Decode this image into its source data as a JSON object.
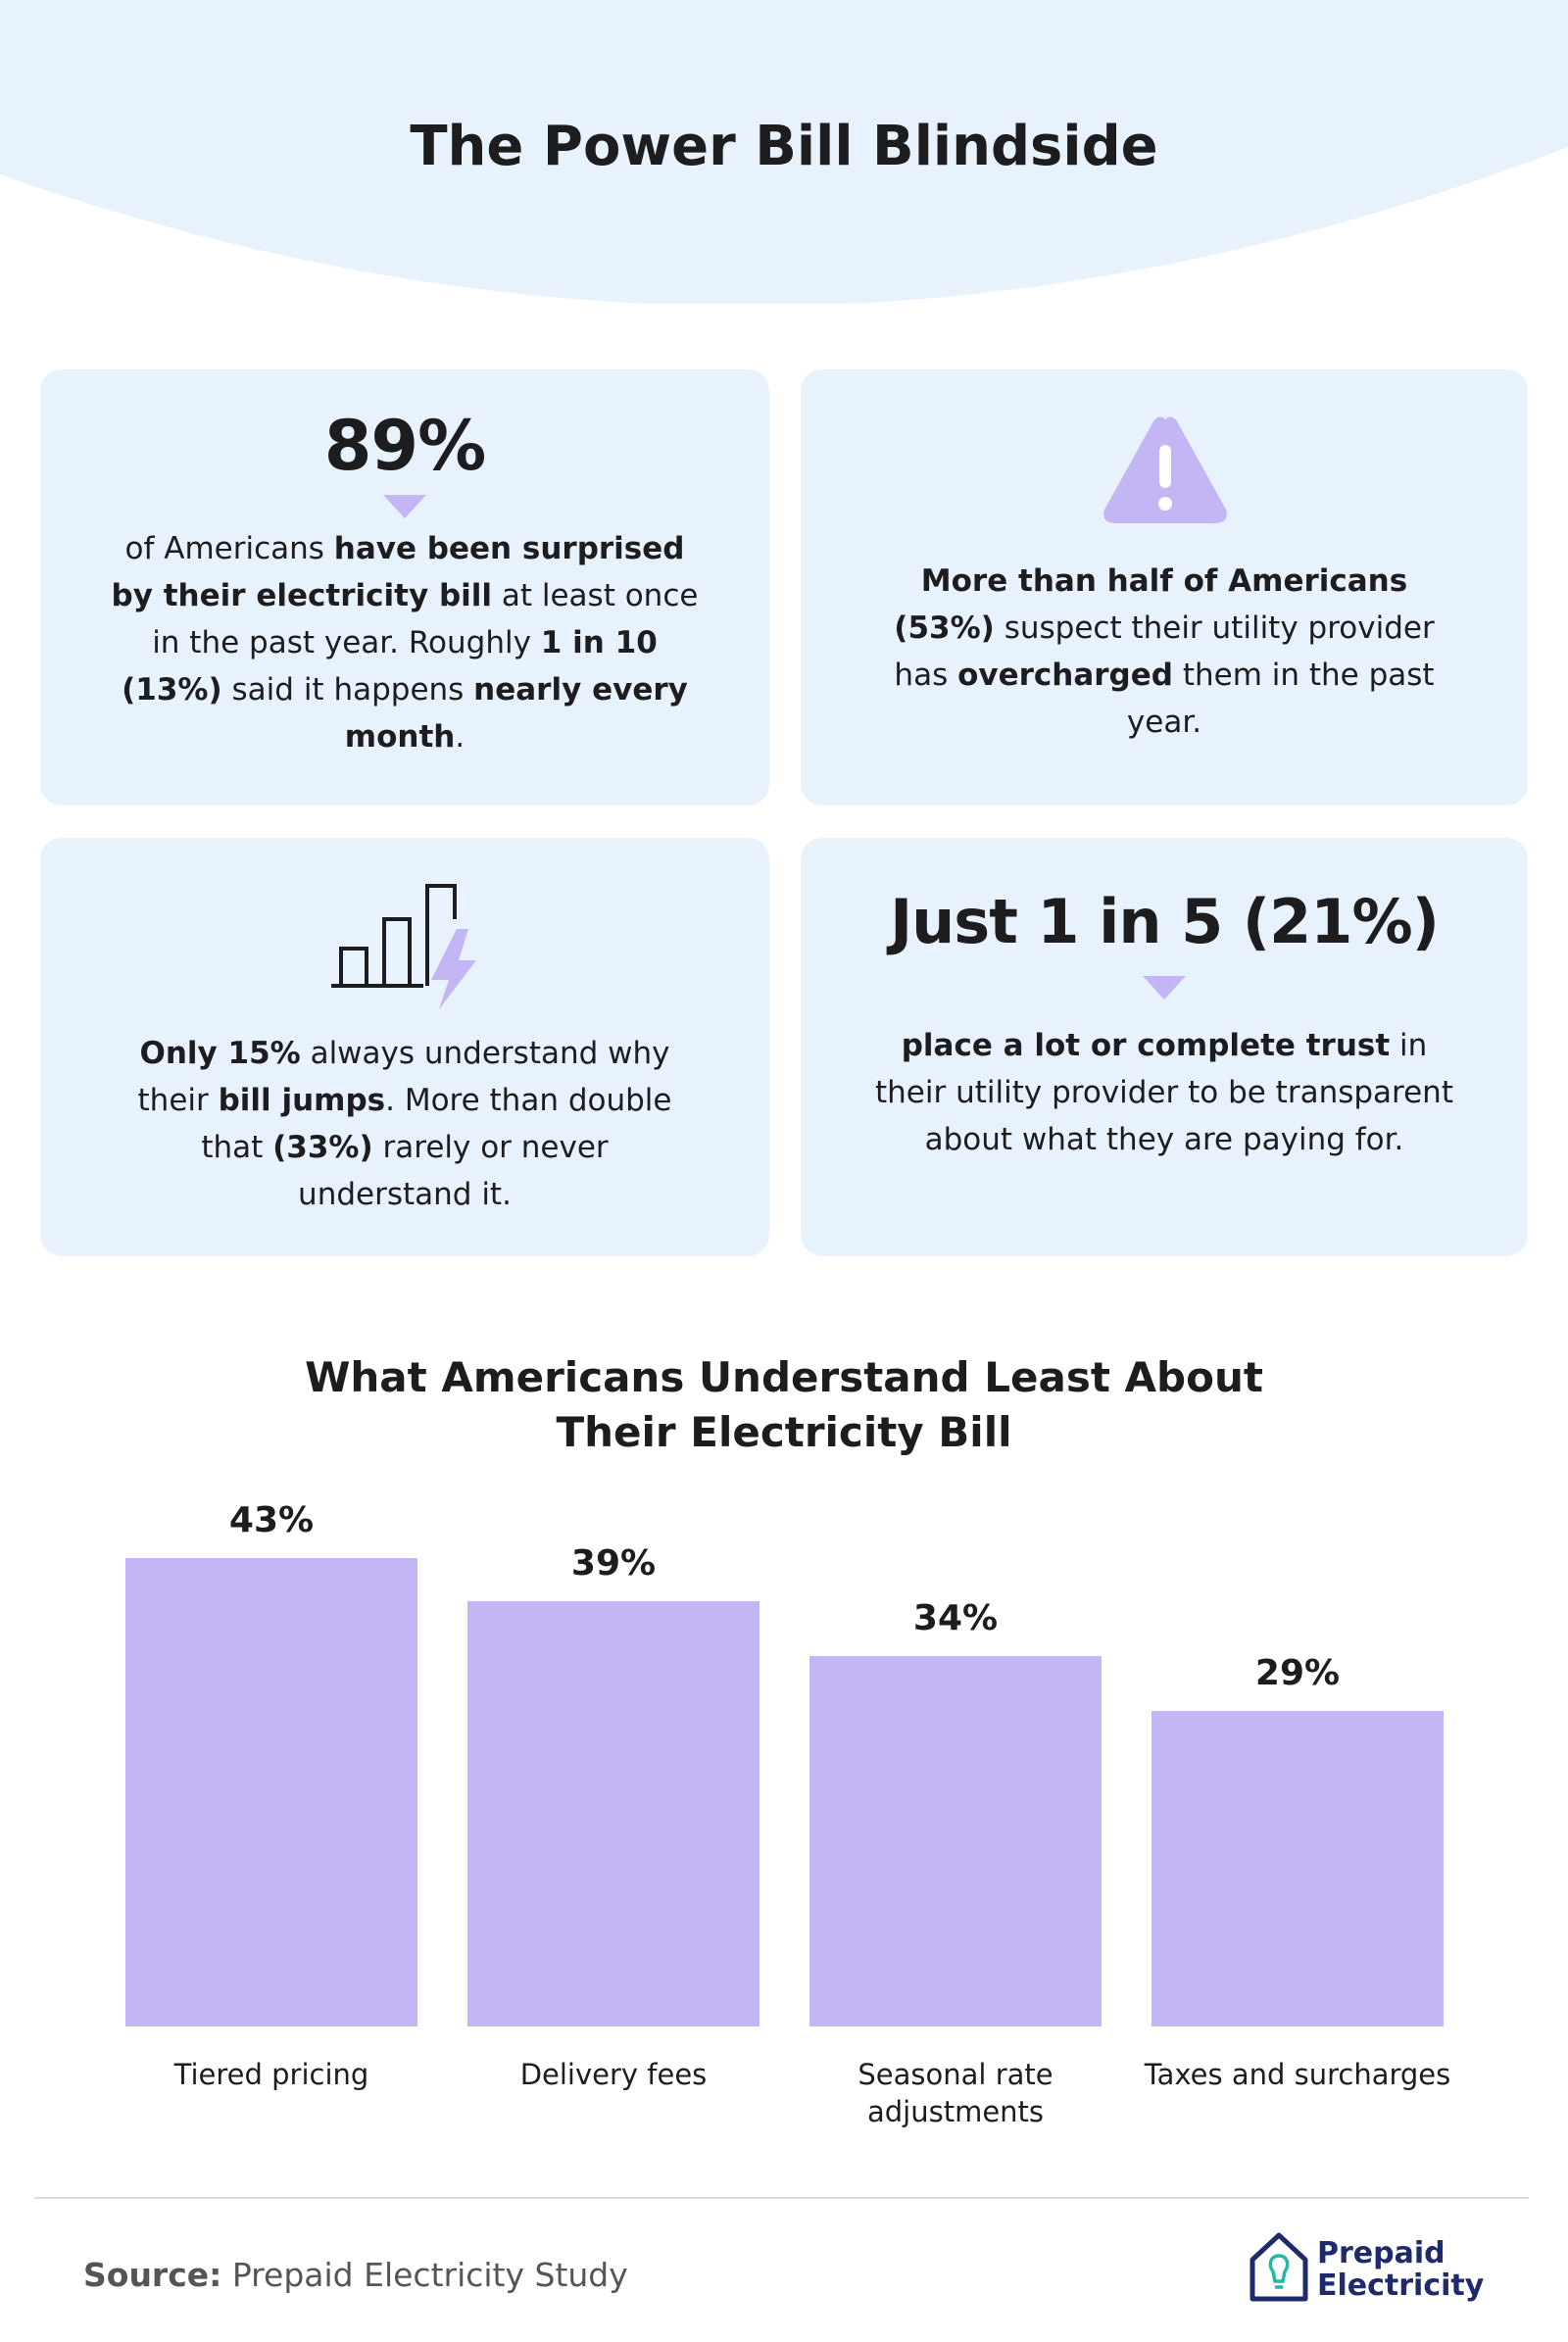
{
  "header": {
    "title": "The Power Bill Blindside"
  },
  "cards": [
    {
      "headline": "89%",
      "body": [
        {
          "text": "of Americans ",
          "bold": false
        },
        {
          "text": "have been surprised by their electricity bill",
          "bold": true
        },
        {
          "text": " at least once in the past year. Roughly ",
          "bold": false
        },
        {
          "text": "1 in 10 (13%)",
          "bold": true
        },
        {
          "text": " said it happens ",
          "bold": false
        },
        {
          "text": "nearly every month",
          "bold": true
        },
        {
          "text": ".",
          "bold": false
        }
      ]
    },
    {
      "body": [
        {
          "text": "More than half of Americans (53%)",
          "bold": true
        },
        {
          "text": " suspect their utility provider has ",
          "bold": false
        },
        {
          "text": "overcharged",
          "bold": true
        },
        {
          "text": " them in the past year.",
          "bold": false
        }
      ]
    },
    {
      "body": [
        {
          "text": "Only 15%",
          "bold": true
        },
        {
          "text": " always understand why their ",
          "bold": false
        },
        {
          "text": "bill jumps",
          "bold": true
        },
        {
          "text": ". More than double that ",
          "bold": false
        },
        {
          "text": "(33%)",
          "bold": true
        },
        {
          "text": " rarely or never understand it.",
          "bold": false
        }
      ]
    },
    {
      "headline": "Just 1 in 5 (21%)",
      "body": [
        {
          "text": "place a lot or complete trust",
          "bold": true
        },
        {
          "text": " in their utility provider to be transparent about what they are paying for.",
          "bold": false
        }
      ]
    }
  ],
  "chart_data": {
    "type": "bar",
    "title": "What Americans Understand Least About Their Electricity Bill",
    "categories": [
      "Tiered pricing",
      "Delivery fees",
      "Seasonal rate adjustments",
      "Taxes and surcharges"
    ],
    "values": [
      43,
      39,
      34,
      29
    ],
    "value_labels": [
      "43%",
      "39%",
      "34%",
      "29%"
    ],
    "color": "#c4b5f4"
  },
  "footer": {
    "source_label": "Source:",
    "source": "Prepaid Electricity Study",
    "logo": [
      "Prepaid",
      "Electricity"
    ]
  }
}
